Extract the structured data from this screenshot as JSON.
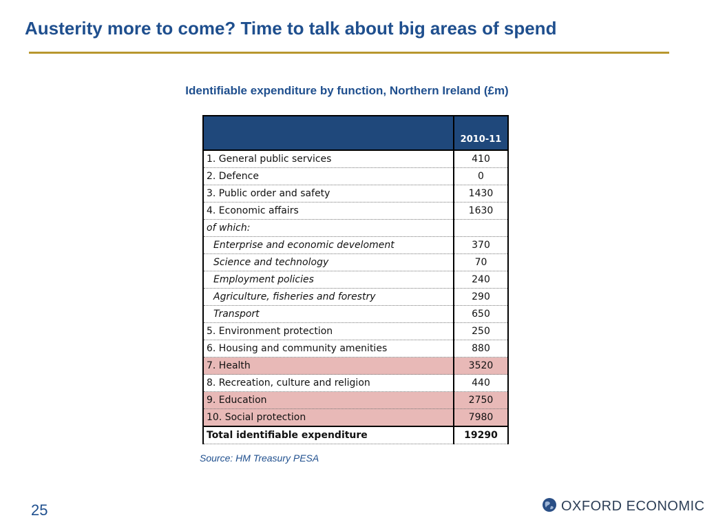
{
  "slide": {
    "title": "Austerity more to come? Time to talk about big areas of spend",
    "page_number": "25"
  },
  "table": {
    "title": "Identifiable expenditure by function, Northern Ireland (£m)",
    "header_value": "2010-11",
    "rows": [
      {
        "label": "1. General public services",
        "value": "410"
      },
      {
        "label": "2. Defence",
        "value": "0"
      },
      {
        "label": "3. Public order and safety",
        "value": "1430"
      },
      {
        "label": "4. Economic affairs",
        "value": "1630"
      },
      {
        "label": "of which:",
        "value": ""
      },
      {
        "label": "Enterprise and economic develoment",
        "value": "370"
      },
      {
        "label": "Science and technology",
        "value": "70"
      },
      {
        "label": "Employment policies",
        "value": "240"
      },
      {
        "label": "Agriculture, fisheries and forestry",
        "value": "290"
      },
      {
        "label": "Transport",
        "value": "650"
      },
      {
        "label": "5. Environment protection",
        "value": "250"
      },
      {
        "label": "6. Housing and community amenities",
        "value": "880"
      },
      {
        "label": "7. Health",
        "value": "3520"
      },
      {
        "label": "8. Recreation, culture and religion",
        "value": "440"
      },
      {
        "label": "9. Education",
        "value": "2750"
      },
      {
        "label": "10. Social protection",
        "value": "7980"
      }
    ],
    "total": {
      "label": "Total identifiable expenditure",
      "value": "19290"
    },
    "highlight_color": "#e8b9b7",
    "header_color": "#1f487b"
  },
  "source": "Source: HM Treasury PESA",
  "logo": {
    "text": "OXFORD ECONOMICS",
    "icon": "globe-icon"
  },
  "colors": {
    "title": "#1f4f8e",
    "rule": "#b8972e"
  }
}
